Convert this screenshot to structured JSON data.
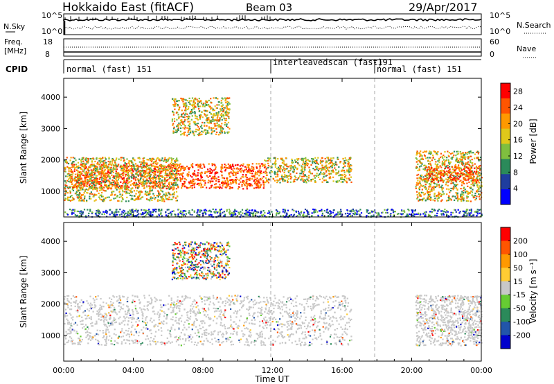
{
  "header": {
    "radar": "Hokkaido East (fitACF)",
    "beam": "Beam 03",
    "date": "29/Apr/2017"
  },
  "top_panels": {
    "nsky_label": "N.Sky",
    "nsearch_label": "N.Search",
    "noise_ticks_left": [
      "10^5",
      "10^0"
    ],
    "noise_ticks_right": [
      "10^5",
      "10^0"
    ],
    "freq_label": "Freq.",
    "freq_unit": "[MHz]",
    "freq_ticks": [
      "18",
      "8"
    ],
    "nave_label": "Nave",
    "nave_ticks": [
      "60",
      "0"
    ],
    "cpid_label": "CPID",
    "cpid_segments": [
      {
        "label": "normal (fast) 151",
        "start_hour": 0
      },
      {
        "label": "interleavedscan (fast)",
        "start_hour": 12
      },
      {
        "label": "-191",
        "start_hour": 18
      },
      {
        "label": "normal (fast) 151",
        "start_hour": 18
      }
    ]
  },
  "chart_data": [
    {
      "type": "heatmap",
      "name": "power",
      "ylabel": "Slant Range [km]",
      "yticks": [
        "1000",
        "2000",
        "3000",
        "4000"
      ],
      "ylim": [
        180,
        4600
      ],
      "colorbar_label": "Power [dB]",
      "colorbar_ticks": [
        "4",
        "8",
        "12",
        "16",
        "20",
        "24",
        "28"
      ],
      "colorbar_range": [
        0,
        30
      ],
      "colors": [
        "#0000ff",
        "#1f3d9e",
        "#2b8a5a",
        "#7fbf3f",
        "#e0c81a",
        "#ff9900",
        "#ff5500",
        "#ff0000"
      ],
      "scatter_regions": [
        {
          "t": [
            0.3,
            11.5
          ],
          "r": [
            1100,
            1900
          ],
          "value": "high"
        },
        {
          "t": [
            0.0,
            6.5
          ],
          "r": [
            700,
            2100
          ],
          "value": "mid"
        },
        {
          "t": [
            11.5,
            16.5
          ],
          "r": [
            1300,
            2100
          ],
          "value": "mid"
        },
        {
          "t": [
            6.2,
            9.5
          ],
          "r": [
            2800,
            4000
          ],
          "value": "mid"
        },
        {
          "t": [
            20.2,
            24.0
          ],
          "r": [
            700,
            2300
          ],
          "value": "mid"
        },
        {
          "t": [
            20.8,
            23.8
          ],
          "r": [
            1300,
            1800
          ],
          "value": "high"
        },
        {
          "t": [
            0.0,
            24.0
          ],
          "r": [
            200,
            450
          ],
          "value": "low"
        }
      ]
    },
    {
      "type": "heatmap",
      "name": "velocity",
      "ylabel": "Slant Range [km]",
      "yticks": [
        "1000",
        "2000",
        "3000",
        "4000"
      ],
      "ylim": [
        180,
        4600
      ],
      "colorbar_label": "Velocity [m s⁻¹]",
      "colorbar_ticks": [
        "200",
        "100",
        "50",
        "15",
        "-15",
        "-50",
        "-100",
        "-200"
      ],
      "colorbar_range": [
        -250,
        250
      ],
      "colors": [
        "#0000cc",
        "#2255aa",
        "#2b8a5a",
        "#66cc33",
        "#c8c8c8",
        "#ffcc33",
        "#ff9900",
        "#ff5500",
        "#ff0000"
      ],
      "scatter_regions": [
        {
          "t": [
            0.0,
            16.5
          ],
          "r": [
            700,
            2300
          ],
          "value": "zero"
        },
        {
          "t": [
            6.2,
            9.5
          ],
          "r": [
            2800,
            4000
          ],
          "value": "mixed"
        },
        {
          "t": [
            20.2,
            24.0
          ],
          "r": [
            700,
            2300
          ],
          "value": "zero"
        }
      ]
    }
  ],
  "xaxis": {
    "label": "Time UT",
    "ticks": [
      "00:00",
      "04:00",
      "08:00",
      "12:00",
      "16:00",
      "20:00",
      "00:00"
    ],
    "range_hours": [
      0,
      24
    ]
  }
}
